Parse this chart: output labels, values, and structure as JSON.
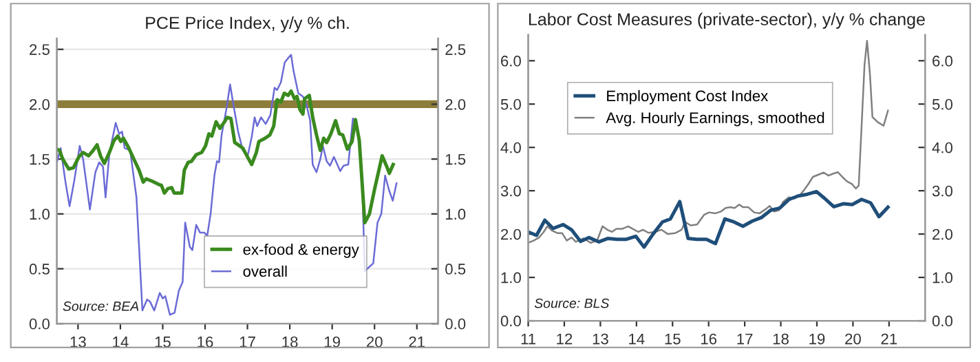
{
  "chart_data": [
    {
      "type": "line",
      "title": "PCE Price Index, y/y % ch.",
      "xlim": [
        2012.5,
        2021.5
      ],
      "xticks": [
        {
          "value": 2013,
          "label": "13"
        },
        {
          "value": 2014,
          "label": "14"
        },
        {
          "value": 2015,
          "label": "15"
        },
        {
          "value": 2016,
          "label": "16"
        },
        {
          "value": 2017,
          "label": "17"
        },
        {
          "value": 2018,
          "label": "18"
        },
        {
          "value": 2019,
          "label": "19"
        },
        {
          "value": 2020,
          "label": "20"
        },
        {
          "value": 2021,
          "label": "21"
        }
      ],
      "ylim": [
        0,
        2.6
      ],
      "yticks": [
        {
          "value": 0,
          "label": "0.0"
        },
        0.5,
        {
          "value": 1,
          "label": "1.0"
        },
        1.5,
        {
          "value": 2,
          "label": "2.0"
        },
        2.5
      ],
      "y2lim": [
        0,
        2.6
      ],
      "y2ticks": [
        {
          "value": 0,
          "label": "0.0"
        },
        0.5,
        {
          "value": 1,
          "label": "1.0"
        },
        1.5,
        {
          "value": 2,
          "label": "2.0"
        },
        2.5
      ],
      "grid": "y",
      "legend": "bottom",
      "ref_lines": [
        {
          "axis": "y",
          "value": 2.0,
          "color": "#8c7d3a"
        }
      ],
      "annotations": [
        "Source: BEA"
      ],
      "series": [
        {
          "name": "ex-food & energy",
          "color": "#3a8a1e",
          "x": [
            2012.5,
            2012.56,
            2012.64,
            2012.78,
            2012.89,
            2013.02,
            2013.12,
            2013.25,
            2013.34,
            2013.45,
            2013.53,
            2013.62,
            2013.73,
            2013.85,
            2013.94,
            2014.01,
            2014.07,
            2014.2,
            2014.33,
            2014.44,
            2014.54,
            2014.61,
            2014.74,
            2014.9,
            2014.97,
            2015.04,
            2015.12,
            2015.21,
            2015.27,
            2015.45,
            2015.51,
            2015.6,
            2015.68,
            2015.79,
            2015.92,
            2016.01,
            2016.09,
            2016.16,
            2016.26,
            2016.35,
            2016.46,
            2016.52,
            2016.61,
            2016.7,
            2016.78,
            2016.89,
            2017.0,
            2017.1,
            2017.21,
            2017.27,
            2017.42,
            2017.53,
            2017.62,
            2017.7,
            2017.79,
            2017.87,
            2017.96,
            2018.03,
            2018.11,
            2018.17,
            2018.24,
            2018.31,
            2018.35,
            2018.46,
            2018.54,
            2018.63,
            2018.72,
            2018.8,
            2018.87,
            2018.97,
            2019.08,
            2019.17,
            2019.25,
            2019.36,
            2019.47,
            2019.55,
            2019.64,
            2019.77,
            2019.88,
            2020.01,
            2020.18,
            2020.28,
            2020.35,
            2020.44
          ],
          "values": [
            1.59,
            1.58,
            1.5,
            1.41,
            1.42,
            1.52,
            1.56,
            1.53,
            1.57,
            1.63,
            1.53,
            1.46,
            1.55,
            1.67,
            1.71,
            1.66,
            1.69,
            1.6,
            1.49,
            1.4,
            1.29,
            1.32,
            1.3,
            1.27,
            1.26,
            1.19,
            1.23,
            1.24,
            1.19,
            1.19,
            1.4,
            1.47,
            1.48,
            1.54,
            1.56,
            1.62,
            1.73,
            1.71,
            1.84,
            1.78,
            1.84,
            1.88,
            1.87,
            1.65,
            1.63,
            1.6,
            1.52,
            1.45,
            1.56,
            1.66,
            1.69,
            1.72,
            1.8,
            2.04,
            2.02,
            2.1,
            2.08,
            2.12,
            2.05,
            2.07,
            1.95,
            1.91,
            2.05,
            2.08,
            1.88,
            1.72,
            1.58,
            1.69,
            1.65,
            1.73,
            1.85,
            1.73,
            1.72,
            1.59,
            1.66,
            1.86,
            1.67,
            0.92,
            1.0,
            1.24,
            1.53,
            1.44,
            1.37,
            1.45
          ]
        },
        {
          "name": "overall",
          "color": "#6b6bd6",
          "x": [
            2012.5,
            2012.59,
            2012.7,
            2012.8,
            2012.91,
            2013.04,
            2013.12,
            2013.28,
            2013.41,
            2013.5,
            2013.59,
            2013.65,
            2013.74,
            2013.89,
            2013.97,
            2014.04,
            2014.1,
            2014.23,
            2014.38,
            2014.52,
            2014.63,
            2014.7,
            2014.8,
            2014.93,
            2015.0,
            2015.06,
            2015.17,
            2015.28,
            2015.38,
            2015.47,
            2015.53,
            2015.64,
            2015.7,
            2015.79,
            2015.88,
            2015.98,
            2016.05,
            2016.13,
            2016.22,
            2016.28,
            2016.33,
            2016.39,
            2016.5,
            2016.59,
            2016.68,
            2016.78,
            2016.89,
            2017.0,
            2017.1,
            2017.17,
            2017.23,
            2017.32,
            2017.43,
            2017.54,
            2017.64,
            2017.7,
            2017.79,
            2017.88,
            2017.96,
            2018.03,
            2018.09,
            2018.2,
            2018.31,
            2018.39,
            2018.48,
            2018.54,
            2018.63,
            2018.72,
            2018.78,
            2018.87,
            2018.95,
            2019.04,
            2019.1,
            2019.19,
            2019.27,
            2019.38,
            2019.49,
            2019.58,
            2019.7,
            2019.77,
            2019.97,
            2020.07,
            2020.16,
            2020.25,
            2020.34,
            2020.43,
            2020.52
          ],
          "values": [
            1.47,
            1.6,
            1.3,
            1.07,
            1.3,
            1.62,
            1.5,
            1.04,
            1.38,
            1.47,
            1.43,
            1.15,
            1.55,
            1.83,
            1.73,
            1.75,
            1.6,
            1.58,
            1.15,
            0.12,
            0.22,
            0.2,
            0.12,
            0.28,
            0.23,
            0.25,
            0.08,
            0.1,
            0.3,
            0.38,
            0.92,
            0.7,
            0.67,
            0.9,
            0.83,
            0.83,
            0.8,
            1.0,
            1.35,
            1.48,
            1.47,
            1.72,
            1.95,
            2.18,
            1.97,
            1.75,
            1.58,
            1.52,
            1.7,
            1.88,
            1.8,
            1.88,
            1.82,
            1.9,
            2.15,
            2.13,
            2.2,
            2.38,
            2.42,
            2.45,
            2.3,
            2.1,
            2.07,
            2.0,
            1.85,
            1.45,
            1.38,
            1.5,
            1.62,
            1.48,
            1.44,
            1.52,
            1.47,
            1.39,
            1.44,
            1.45,
            1.87,
            1.83,
            1.4,
            0.48,
            0.55,
            0.92,
            1.0,
            1.35,
            1.22,
            1.12,
            1.28
          ]
        }
      ]
    },
    {
      "type": "line",
      "title": "Labor Cost Measures (private-sector), y/y % change",
      "xlim": [
        2011,
        2022
      ],
      "xticks": [
        {
          "value": 2011,
          "label": "11"
        },
        {
          "value": 2012,
          "label": "12"
        },
        {
          "value": 2013,
          "label": "13"
        },
        {
          "value": 2014,
          "label": "14"
        },
        {
          "value": 2015,
          "label": "15"
        },
        {
          "value": 2016,
          "label": "16"
        },
        {
          "value": 2017,
          "label": "17"
        },
        {
          "value": 2018,
          "label": "18"
        },
        {
          "value": 2019,
          "label": "19"
        },
        {
          "value": 2020,
          "label": "20"
        },
        {
          "value": 2021,
          "label": "21"
        }
      ],
      "ylim": [
        0,
        6.6
      ],
      "yticks": [
        {
          "value": 0,
          "label": "0.0"
        },
        {
          "value": 1,
          "label": "1.0"
        },
        {
          "value": 2,
          "label": "2.0"
        },
        {
          "value": 3,
          "label": "3.0"
        },
        {
          "value": 4,
          "label": "4.0"
        },
        {
          "value": 5,
          "label": "5.0"
        },
        {
          "value": 6,
          "label": "6.0"
        }
      ],
      "y2lim": [
        0,
        6.6
      ],
      "y2ticks": [
        {
          "value": 0,
          "label": "0.0"
        },
        {
          "value": 1,
          "label": "1.0"
        },
        {
          "value": 2,
          "label": "2.0"
        },
        {
          "value": 3,
          "label": "3.0"
        },
        {
          "value": 4,
          "label": "4.0"
        },
        {
          "value": 5,
          "label": "5.0"
        },
        {
          "value": 6,
          "label": "6.0"
        }
      ],
      "legend": "top left",
      "annotations": [
        "Source: BLS"
      ],
      "series": [
        {
          "name": "Employment Cost Index",
          "color": "#1f4e79",
          "x": [
            2011.0,
            2011.23,
            2011.46,
            2011.69,
            2011.97,
            2012.2,
            2012.45,
            2012.68,
            2012.96,
            2013.21,
            2013.47,
            2013.72,
            2013.98,
            2014.21,
            2014.46,
            2014.72,
            2014.94,
            2015.2,
            2015.43,
            2015.68,
            2015.94,
            2016.19,
            2016.45,
            2016.7,
            2016.95,
            2017.21,
            2017.46,
            2017.72,
            2017.97,
            2018.23,
            2018.48,
            2018.74,
            2018.99,
            2019.22,
            2019.47,
            2019.73,
            2019.98,
            2020.24,
            2020.49,
            2020.72,
            2020.97
          ],
          "values": [
            2.05,
            1.97,
            2.32,
            2.13,
            2.22,
            2.1,
            1.83,
            1.92,
            1.82,
            1.9,
            1.88,
            1.88,
            1.95,
            1.7,
            2.0,
            2.28,
            2.35,
            2.75,
            1.9,
            1.88,
            1.88,
            1.78,
            2.35,
            2.28,
            2.18,
            2.3,
            2.38,
            2.55,
            2.6,
            2.8,
            2.88,
            2.92,
            2.98,
            2.82,
            2.63,
            2.7,
            2.68,
            2.8,
            2.72,
            2.4,
            2.62
          ]
        },
        {
          "name": "Avg. Hourly Earnings, smoothed",
          "color": "#808080",
          "x": [
            2011.0,
            2011.15,
            2011.3,
            2011.43,
            2011.53,
            2011.66,
            2011.82,
            2011.94,
            2012.07,
            2012.2,
            2012.32,
            2012.53,
            2012.73,
            2012.91,
            2013.06,
            2013.19,
            2013.32,
            2013.44,
            2013.6,
            2013.77,
            2013.9,
            2014.05,
            2014.18,
            2014.33,
            2014.51,
            2014.69,
            2014.87,
            2015.07,
            2015.25,
            2015.35,
            2015.5,
            2015.68,
            2015.88,
            2016.01,
            2016.19,
            2016.34,
            2016.47,
            2016.6,
            2016.72,
            2016.85,
            2016.95,
            2017.1,
            2017.26,
            2017.41,
            2017.59,
            2017.69,
            2017.82,
            2017.95,
            2018.07,
            2018.23,
            2018.38,
            2018.51,
            2018.63,
            2018.76,
            2018.89,
            2019.07,
            2019.19,
            2019.32,
            2019.47,
            2019.58,
            2019.73,
            2019.83,
            2019.98,
            2020.08,
            2020.16,
            2020.24,
            2020.32,
            2020.39,
            2020.47,
            2020.54,
            2020.69,
            2020.85,
            2020.97
          ],
          "values": [
            1.8,
            1.85,
            1.92,
            2.05,
            2.18,
            2.08,
            2.02,
            2.02,
            1.85,
            1.92,
            1.82,
            1.9,
            1.8,
            1.85,
            2.18,
            2.1,
            2.05,
            2.12,
            2.12,
            2.18,
            2.12,
            2.05,
            2.1,
            2.03,
            2.05,
            2.1,
            2.0,
            2.02,
            2.1,
            2.28,
            2.2,
            2.22,
            2.45,
            2.5,
            2.48,
            2.52,
            2.6,
            2.62,
            2.6,
            2.68,
            2.62,
            2.62,
            2.5,
            2.48,
            2.58,
            2.65,
            2.52,
            2.55,
            2.75,
            2.85,
            2.82,
            2.88,
            3.0,
            3.15,
            3.32,
            3.38,
            3.42,
            3.35,
            3.4,
            3.43,
            3.3,
            3.22,
            3.15,
            3.05,
            3.12,
            4.5,
            5.9,
            6.46,
            5.7,
            4.7,
            4.58,
            4.5,
            4.85
          ]
        }
      ]
    }
  ]
}
